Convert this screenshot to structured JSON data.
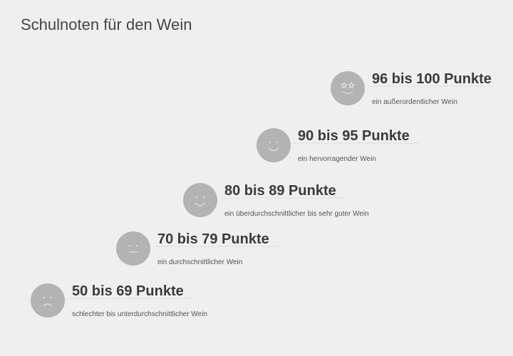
{
  "title": "Schulnoten für den Wein",
  "levels": [
    {
      "heading": "96 bis 100 Punkte",
      "description": "ein außerordentlicher Wein"
    },
    {
      "heading": "90 bis 95 Punkte",
      "description": "ein hervorragender Wein"
    },
    {
      "heading": "80 bis 89 Punkte",
      "description": "ein überdurchschnittlicher bis sehr guter Wein"
    },
    {
      "heading": "70 bis 79 Punkte",
      "description": "ein durchschnittlicher Wein"
    },
    {
      "heading": "50 bis 69 Punkte",
      "description": "schlechter bis unterdurchschnittlicher Wein"
    }
  ]
}
